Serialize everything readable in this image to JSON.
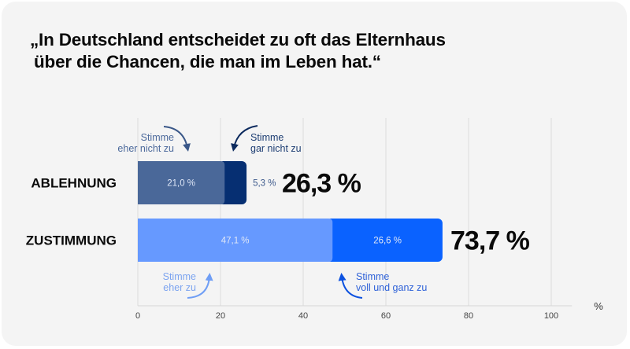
{
  "title": {
    "line1": "„In Deutschland entscheidet zu oft das Elternhaus",
    "line2": "über die Chancen, die man im Leben hat.“"
  },
  "chart_data": {
    "type": "bar",
    "orientation": "horizontal",
    "stacked": true,
    "title": "„In Deutschland entscheidet zu oft das Elternhaus über die Chancen, die man im Leben hat.“",
    "categories": [
      "ABLEHNUNG",
      "ZUSTIMMUNG"
    ],
    "series": [
      {
        "name": "Stimme eher nicht zu",
        "category": "ABLEHNUNG",
        "value": 21.0,
        "label": "21,0 %",
        "color": "#4a6899",
        "label_position": "inside",
        "annotation": [
          "Stimme",
          "eher nicht zu"
        ],
        "annotation_color": "#4d6a9c"
      },
      {
        "name": "Stimme gar nicht zu",
        "category": "ABLEHNUNG",
        "value": 5.3,
        "label": "5,3 %",
        "color": "#062f72",
        "label_position": "outside",
        "annotation": [
          "Stimme",
          "gar nicht zu"
        ],
        "annotation_color": "#1f3f74"
      },
      {
        "name": "Stimme eher zu",
        "category": "ZUSTIMMUNG",
        "value": 47.1,
        "label": "47,1 %",
        "color": "#6699ff",
        "label_position": "inside",
        "annotation": [
          "Stimme",
          "eher zu"
        ],
        "annotation_color": "#7ca4f0"
      },
      {
        "name": "Stimme voll und ganz zu",
        "category": "ZUSTIMMUNG",
        "value": 26.6,
        "label": "26,6 %",
        "color": "#0a62ff",
        "label_position": "inside",
        "annotation": [
          "Stimme",
          "voll und ganz zu"
        ],
        "annotation_color": "#2f62d8"
      }
    ],
    "totals": [
      {
        "category": "ABLEHNUNG",
        "value": 26.3,
        "label": "26,3 %"
      },
      {
        "category": "ZUSTIMMUNG",
        "value": 73.7,
        "label": "73,7 %"
      }
    ],
    "xlim": [
      0,
      105
    ],
    "xticks": [
      0,
      20,
      40,
      60,
      80,
      100
    ],
    "xtick_labels": [
      "0",
      "20",
      "40",
      "60",
      "80",
      "100"
    ],
    "xlabel": "%",
    "ylabel": "",
    "grid": true,
    "legend": "annotations"
  }
}
